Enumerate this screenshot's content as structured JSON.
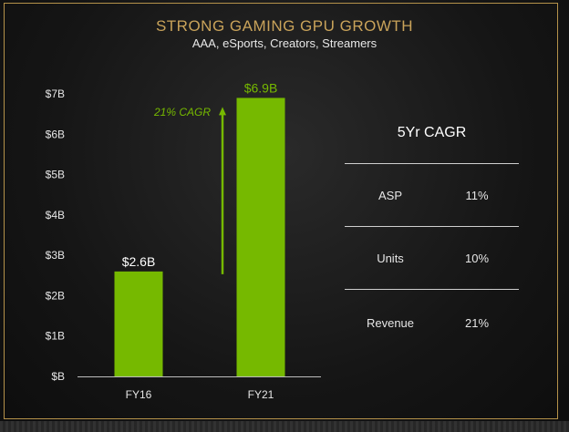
{
  "header": {
    "title": "STRONG GAMING GPU GROWTH",
    "subtitle": "AAA, eSports, Creators, Streamers"
  },
  "colors": {
    "bar": "#76b900",
    "accent_gold": "#c9a35a",
    "axis": "#bdbdbd"
  },
  "chart_data": {
    "type": "bar",
    "categories": [
      "FY16",
      "FY21"
    ],
    "values": [
      2.6,
      6.9
    ],
    "data_labels": [
      "$2.6B",
      "$6.9B"
    ],
    "title": "",
    "xlabel": "",
    "ylabel": "",
    "ylim": [
      0,
      7
    ],
    "yticks": [
      {
        "value": 0,
        "label": "$B"
      },
      {
        "value": 1,
        "label": "$1B"
      },
      {
        "value": 2,
        "label": "$2B"
      },
      {
        "value": 3,
        "label": "$3B"
      },
      {
        "value": 4,
        "label": "$4B"
      },
      {
        "value": 5,
        "label": "$5B"
      },
      {
        "value": 6,
        "label": "$6B"
      },
      {
        "value": 7,
        "label": "$7B"
      }
    ],
    "grid": false,
    "annotations": [
      {
        "text": "21% CAGR",
        "kind": "growth-arrow",
        "from": 2.6,
        "to": 6.9
      }
    ]
  },
  "cagr_panel": {
    "title": "5Yr CAGR",
    "rows": [
      {
        "label": "ASP",
        "value": "11%"
      },
      {
        "label": "Units",
        "value": "10%"
      },
      {
        "label": "Revenue",
        "value": "21%"
      }
    ]
  }
}
